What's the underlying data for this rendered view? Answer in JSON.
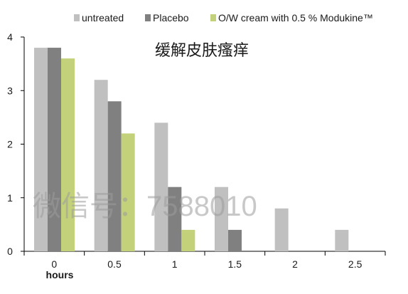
{
  "chart_data": {
    "type": "bar",
    "title": "缓解皮肤瘙痒",
    "xlabel": "hours",
    "ylabel": "",
    "categories": [
      "0",
      "0.5",
      "1",
      "1.5",
      "2",
      "2.5"
    ],
    "ylim": [
      0,
      4
    ],
    "yticks": [
      0,
      1,
      2,
      3,
      4
    ],
    "grid": false,
    "legend_position": "top",
    "series": [
      {
        "name": "untreated",
        "color": "#c0c0c0",
        "values": [
          3.8,
          3.2,
          2.4,
          1.2,
          0.8,
          0.4
        ]
      },
      {
        "name": "Placebo",
        "color": "#808080",
        "values": [
          3.8,
          2.8,
          1.2,
          0.4,
          0,
          0
        ]
      },
      {
        "name": "O/W cream with 0.5 % Modukine™",
        "color": "#c3d17a",
        "values": [
          3.6,
          2.2,
          0.4,
          0,
          0,
          0
        ]
      }
    ]
  },
  "watermark": "微信号：7588010"
}
